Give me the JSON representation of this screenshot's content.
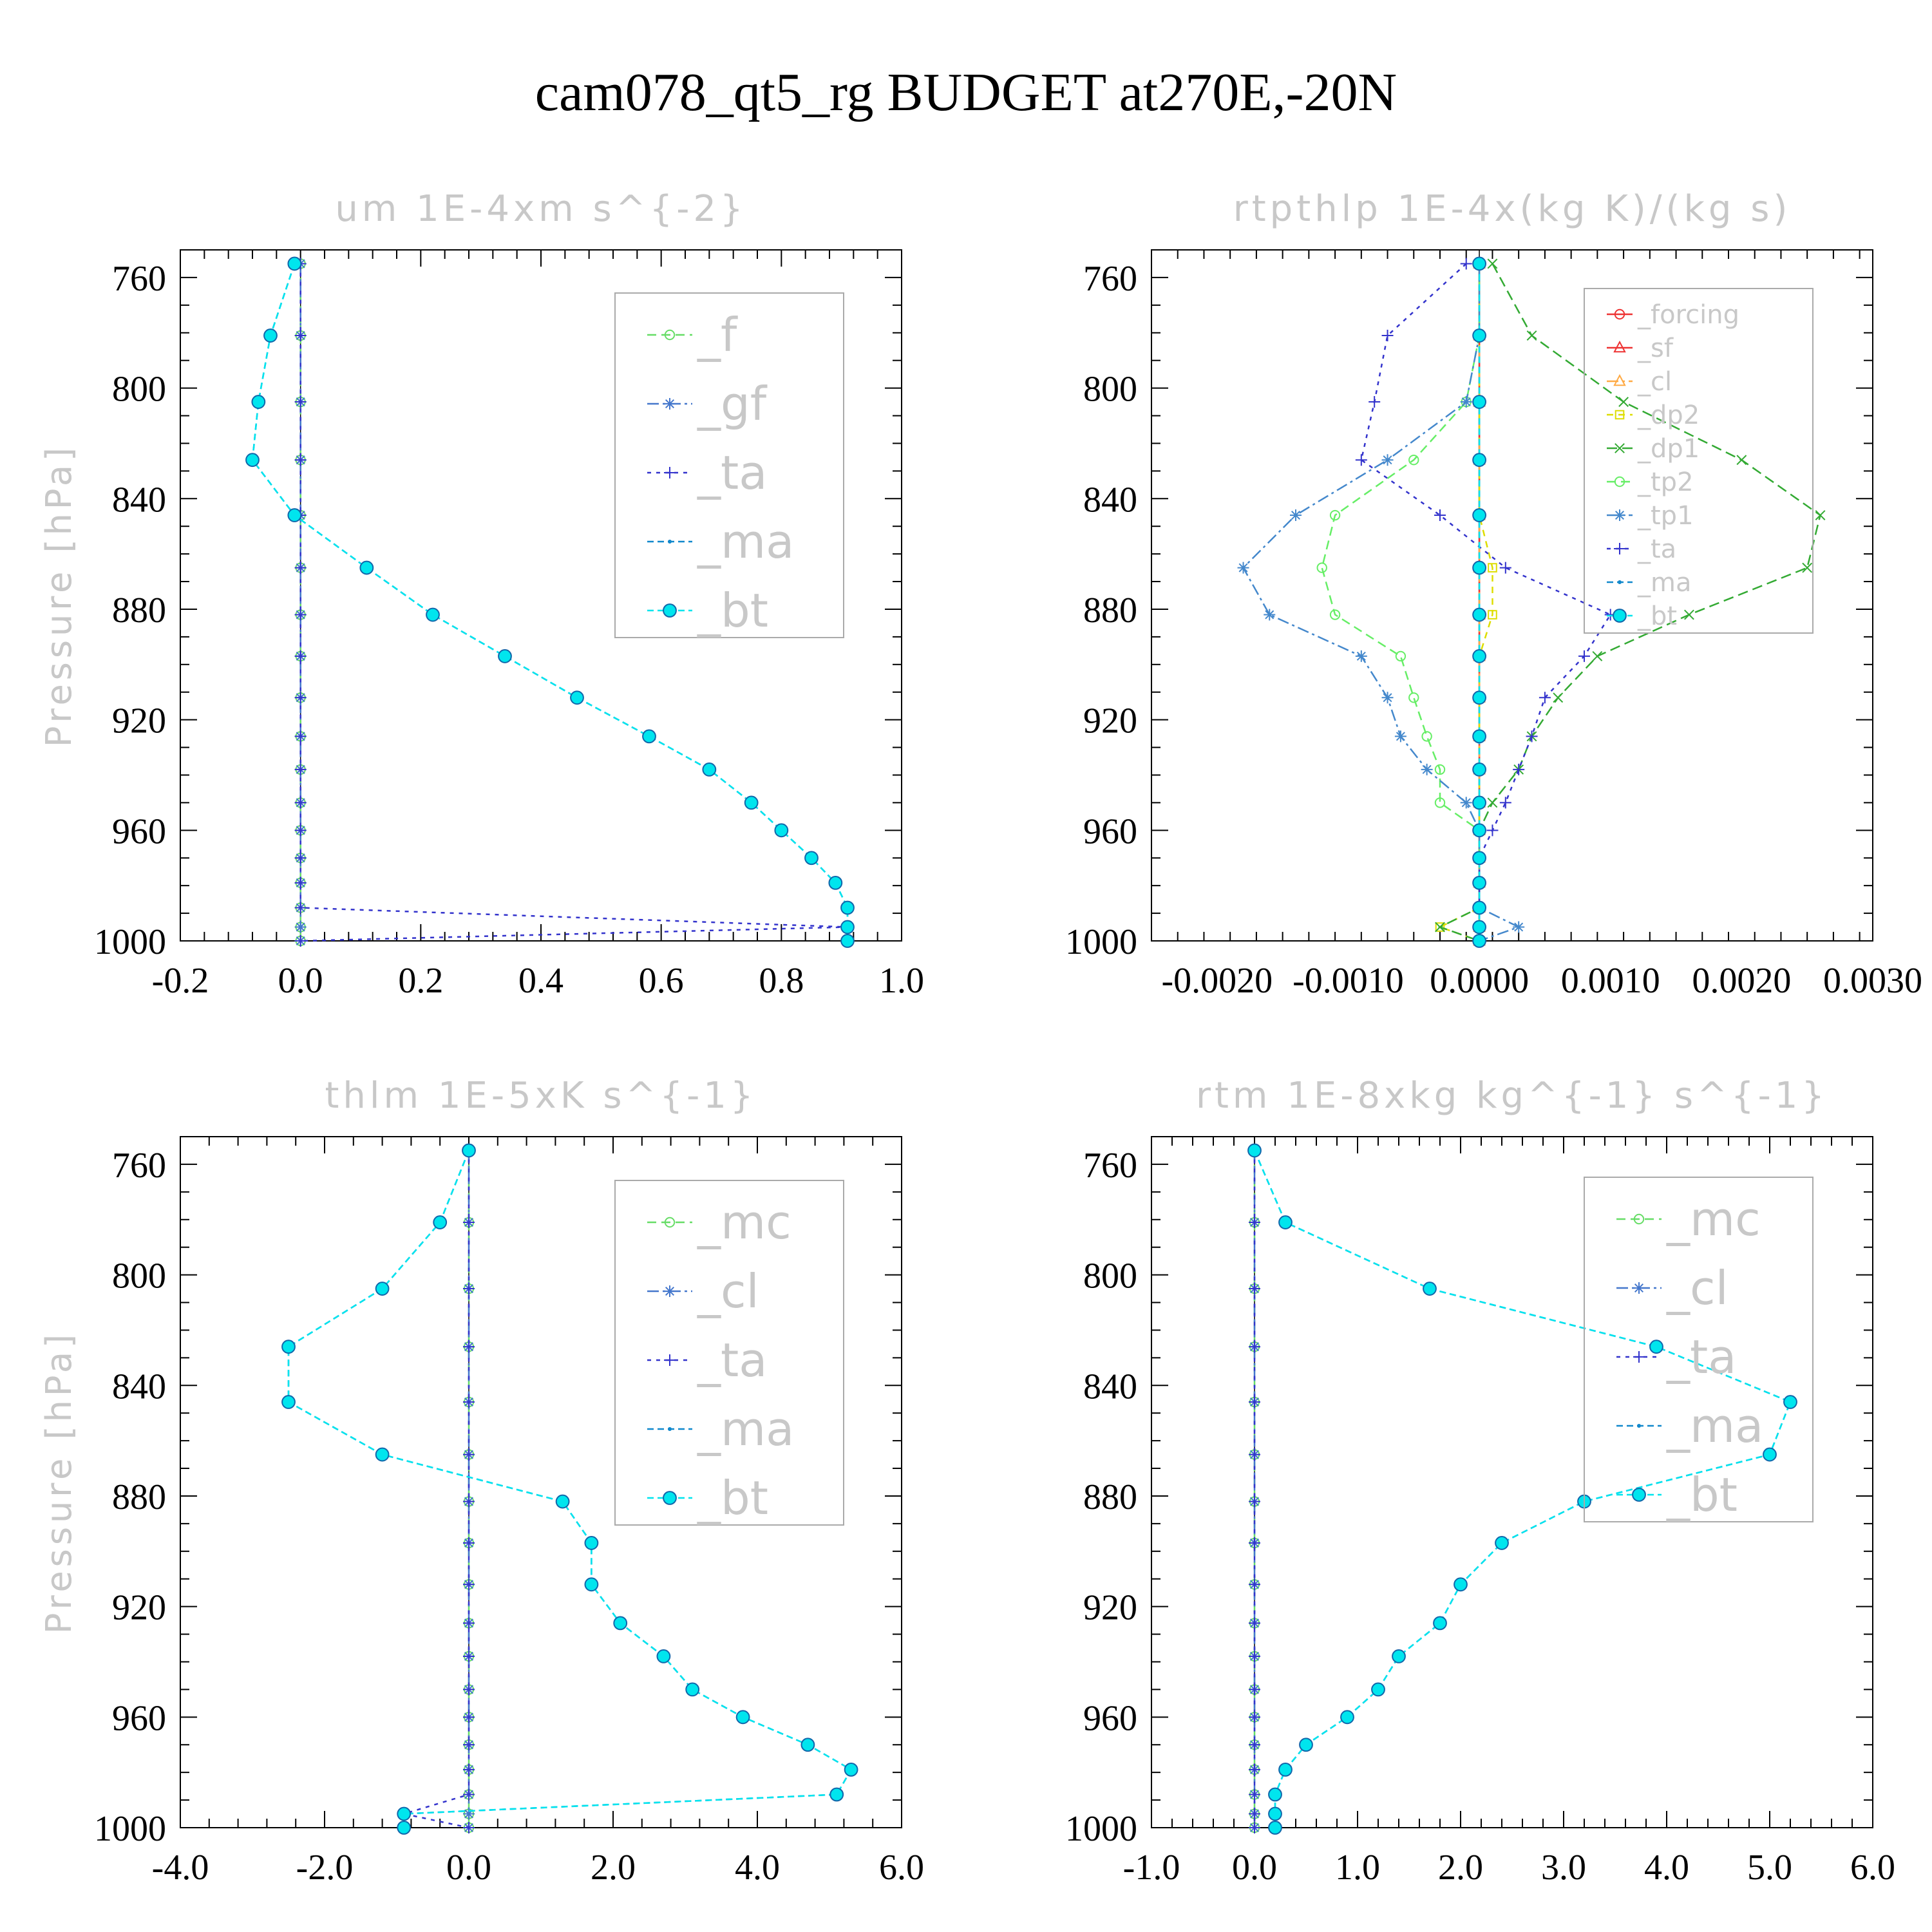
{
  "figure": {
    "title": "cam078_qt5_rg  BUDGET at270E,-20N"
  },
  "chart_data": [
    {
      "type": "line",
      "title": "um  1E-4xm s^{-2}",
      "ylabel": "Pressure [hPa]",
      "xlim": [
        -0.2,
        1.0
      ],
      "ylim": [
        1000,
        750
      ],
      "xticks": [
        -0.2,
        0.0,
        0.2,
        0.4,
        0.6,
        0.8,
        1.0
      ],
      "xtick_labels": [
        "-0.2",
        "0.0",
        "0.2",
        "0.4",
        "0.6",
        "0.8",
        "1.0"
      ],
      "yticks": [
        760,
        800,
        840,
        880,
        920,
        960,
        1000
      ],
      "legend_placement": "top-right",
      "levels": [
        755,
        781,
        805,
        826,
        846,
        865,
        882,
        897,
        912,
        926,
        938,
        950,
        960,
        970,
        979,
        988,
        995,
        1000
      ],
      "series": [
        {
          "name": "_f",
          "color": "#66dd66",
          "marker": "circle",
          "values": [
            0,
            0,
            0,
            0,
            0,
            0,
            0,
            0,
            0,
            0,
            0,
            0,
            0,
            0,
            0,
            0,
            0,
            0
          ]
        },
        {
          "name": "_gf",
          "color": "#4477cc",
          "marker": "star",
          "values": [
            0,
            0,
            0,
            0,
            0,
            0,
            0,
            0,
            0,
            0,
            0,
            0,
            0,
            0,
            0,
            0,
            0,
            0
          ]
        },
        {
          "name": "_ta",
          "color": "#3333cc",
          "marker": "plus",
          "values": [
            0,
            0,
            0,
            0,
            0,
            0,
            0,
            0,
            0,
            0,
            0,
            0,
            0,
            0,
            0,
            0,
            0.91,
            0
          ]
        },
        {
          "name": "_ma",
          "color": "#1188cc",
          "marker": "dot",
          "values": [
            -0.01,
            -0.05,
            -0.07,
            -0.08,
            -0.01,
            0.11,
            0.22,
            0.34,
            0.46,
            0.58,
            0.68,
            0.75,
            0.8,
            0.85,
            0.89,
            0.91,
            0.91,
            0.91
          ]
        },
        {
          "name": "_bt",
          "color": "#00e5ee",
          "marker": "filled",
          "values": [
            -0.01,
            -0.05,
            -0.07,
            -0.08,
            -0.01,
            0.11,
            0.22,
            0.34,
            0.46,
            0.58,
            0.68,
            0.75,
            0.8,
            0.85,
            0.89,
            0.91,
            0.91,
            0.91
          ]
        }
      ]
    },
    {
      "type": "line",
      "title": "rtpthlp  1E-4x(kg K)/(kg s)",
      "ylabel": "Pressure [hPa]",
      "xlim": [
        -0.0025,
        0.003
      ],
      "ylim": [
        1000,
        750
      ],
      "xticks": [
        -0.002,
        -0.001,
        0.0,
        0.001,
        0.002,
        0.003
      ],
      "xtick_labels": [
        "-0.0020",
        "-0.0010",
        "0.0000",
        "0.0010",
        "0.0020",
        "0.0030"
      ],
      "yticks": [
        760,
        800,
        840,
        880,
        920,
        960,
        1000
      ],
      "legend_placement": "top-right",
      "levels": [
        755,
        781,
        805,
        826,
        846,
        865,
        882,
        897,
        912,
        926,
        938,
        950,
        960,
        970,
        979,
        988,
        995,
        1000
      ],
      "series": [
        {
          "name": "_forcing",
          "color": "#ee3333",
          "marker": "circle",
          "values": [
            0,
            0,
            0,
            0,
            0,
            0,
            0,
            0,
            0,
            0,
            0,
            0,
            0,
            0,
            0,
            0,
            0,
            0
          ]
        },
        {
          "name": "_sf",
          "color": "#ee3333",
          "marker": "triangle",
          "values": [
            0,
            0,
            0,
            0,
            0,
            0,
            0,
            0,
            0,
            0,
            0,
            0,
            0,
            0,
            0,
            0,
            0,
            0
          ]
        },
        {
          "name": "_cl",
          "color": "#ffaa44",
          "marker": "triangle",
          "values": [
            0,
            0,
            0,
            0,
            0,
            0,
            0,
            0,
            0,
            0,
            0,
            0,
            0,
            0,
            0,
            0,
            0,
            0
          ]
        },
        {
          "name": "_dp2",
          "color": "#dddd00",
          "marker": "square",
          "values": [
            0,
            0,
            0,
            0,
            0,
            0.0001,
            0.0001,
            0,
            0,
            0,
            0,
            0,
            0,
            0,
            0,
            0,
            -0.0003,
            0
          ]
        },
        {
          "name": "_dp1",
          "color": "#33aa33",
          "marker": "cross",
          "values": [
            0.0001,
            0.0004,
            0.0011,
            0.002,
            0.0026,
            0.0025,
            0.0016,
            0.0009,
            0.0006,
            0.0004,
            0.0003,
            0.0001,
            0,
            0,
            0,
            0,
            -0.0003,
            0
          ]
        },
        {
          "name": "_tp2",
          "color": "#66ee66",
          "marker": "circle",
          "values": [
            0,
            0,
            -0.0001,
            -0.0005,
            -0.0011,
            -0.0012,
            -0.0011,
            -0.0006,
            -0.0005,
            -0.0004,
            -0.0003,
            -0.0003,
            0,
            0,
            0,
            0,
            0,
            0
          ]
        },
        {
          "name": "_tp1",
          "color": "#4488cc",
          "marker": "star",
          "values": [
            0,
            0,
            -0.0001,
            -0.0007,
            -0.0014,
            -0.0018,
            -0.0016,
            -0.0009,
            -0.0007,
            -0.0006,
            -0.0004,
            -0.0001,
            0,
            0,
            0,
            0,
            0.0003,
            0
          ]
        },
        {
          "name": "_ta",
          "color": "#3333cc",
          "marker": "plus",
          "values": [
            -0.0001,
            -0.0007,
            -0.0008,
            -0.0009,
            -0.0003,
            0.0002,
            0.001,
            0.0008,
            0.0005,
            0.0004,
            0.0003,
            0.0002,
            0.0001,
            0,
            0,
            0,
            0,
            0
          ]
        },
        {
          "name": "_ma",
          "color": "#1188cc",
          "marker": "dot",
          "values": [
            0,
            0,
            0,
            0,
            0,
            0,
            0,
            0,
            0,
            0,
            0,
            0,
            0,
            0,
            0,
            0,
            0,
            0
          ]
        },
        {
          "name": "_bt",
          "color": "#00e5ee",
          "marker": "filled",
          "values": [
            0,
            0,
            0,
            0,
            0,
            0,
            0,
            0,
            0,
            0,
            0,
            0,
            0,
            0,
            0,
            0,
            0,
            0
          ]
        }
      ]
    },
    {
      "type": "line",
      "title": "thlm  1E-5xK s^{-1}",
      "ylabel": "Pressure [hPa]",
      "xlim": [
        -4.0,
        6.0
      ],
      "ylim": [
        1000,
        750
      ],
      "xticks": [
        -4.0,
        -2.0,
        0.0,
        2.0,
        4.0,
        6.0
      ],
      "xtick_labels": [
        "-4.0",
        "-2.0",
        "0.0",
        "2.0",
        "4.0",
        "6.0"
      ],
      "yticks": [
        760,
        800,
        840,
        880,
        920,
        960,
        1000
      ],
      "legend_placement": "top-right",
      "levels": [
        755,
        781,
        805,
        826,
        846,
        865,
        882,
        897,
        912,
        926,
        938,
        950,
        960,
        970,
        979,
        988,
        995,
        1000
      ],
      "series": [
        {
          "name": "_mc",
          "color": "#66dd66",
          "marker": "circle",
          "values": [
            0,
            0,
            0,
            0,
            0,
            0,
            0,
            0,
            0,
            0,
            0,
            0,
            0,
            0,
            0,
            0,
            0,
            0
          ]
        },
        {
          "name": "_cl",
          "color": "#4477cc",
          "marker": "star",
          "values": [
            0,
            0,
            0,
            0,
            0,
            0,
            0,
            0,
            0,
            0,
            0,
            0,
            0,
            0,
            0,
            0,
            0,
            0
          ]
        },
        {
          "name": "_ta",
          "color": "#3333cc",
          "marker": "plus",
          "values": [
            0,
            0,
            0,
            0,
            0,
            0,
            0,
            0,
            0,
            0,
            0,
            0,
            0,
            0,
            0,
            0,
            -0.9,
            0
          ]
        },
        {
          "name": "_ma",
          "color": "#1188cc",
          "marker": "dot",
          "values": [
            0,
            -0.4,
            -1.2,
            -2.5,
            -2.5,
            -1.2,
            1.3,
            1.7,
            1.7,
            2.1,
            2.7,
            3.1,
            3.8,
            4.7,
            5.3,
            5.1,
            -0.9,
            -0.9
          ]
        },
        {
          "name": "_bt",
          "color": "#00e5ee",
          "marker": "filled",
          "values": [
            0,
            -0.4,
            -1.2,
            -2.5,
            -2.5,
            -1.2,
            1.3,
            1.7,
            1.7,
            2.1,
            2.7,
            3.1,
            3.8,
            4.7,
            5.3,
            5.1,
            -0.9,
            -0.9
          ]
        }
      ]
    },
    {
      "type": "line",
      "title": "rtm  1E-8xkg kg^{-1} s^{-1}",
      "ylabel": "Pressure [hPa]",
      "xlim": [
        -1.0,
        6.0
      ],
      "ylim": [
        1000,
        750
      ],
      "xticks": [
        -1.0,
        0.0,
        1.0,
        2.0,
        3.0,
        4.0,
        5.0,
        6.0
      ],
      "xtick_labels": [
        "-1.0",
        "0.0",
        "1.0",
        "2.0",
        "3.0",
        "4.0",
        "5.0",
        "6.0"
      ],
      "yticks": [
        760,
        800,
        840,
        880,
        920,
        960,
        1000
      ],
      "legend_placement": "top-right",
      "levels": [
        755,
        781,
        805,
        826,
        846,
        865,
        882,
        897,
        912,
        926,
        938,
        950,
        960,
        970,
        979,
        988,
        995,
        1000
      ],
      "series": [
        {
          "name": "_mc",
          "color": "#66dd66",
          "marker": "circle",
          "values": [
            0,
            0,
            0,
            0,
            0,
            0,
            0,
            0,
            0,
            0,
            0,
            0,
            0,
            0,
            0,
            0,
            0,
            0
          ]
        },
        {
          "name": "_cl",
          "color": "#4477cc",
          "marker": "star",
          "values": [
            0,
            0,
            0,
            0,
            0,
            0,
            0,
            0,
            0,
            0,
            0,
            0,
            0,
            0,
            0,
            0,
            0,
            0
          ]
        },
        {
          "name": "_ta",
          "color": "#3333cc",
          "marker": "plus",
          "values": [
            0,
            0,
            0,
            0,
            0,
            0,
            0,
            0,
            0,
            0,
            0,
            0,
            0,
            0,
            0,
            0,
            0,
            0
          ]
        },
        {
          "name": "_ma",
          "color": "#1188cc",
          "marker": "dot",
          "values": [
            0,
            0.3,
            1.7,
            3.9,
            5.2,
            5.0,
            3.2,
            2.4,
            2.0,
            1.8,
            1.4,
            1.2,
            0.9,
            0.5,
            0.3,
            0.2,
            0.2,
            0.2
          ]
        },
        {
          "name": "_bt",
          "color": "#00e5ee",
          "marker": "filled",
          "values": [
            0,
            0.3,
            1.7,
            3.9,
            5.2,
            5.0,
            3.2,
            2.4,
            2.0,
            1.8,
            1.4,
            1.2,
            0.9,
            0.5,
            0.3,
            0.2,
            0.2,
            0.2
          ]
        }
      ]
    }
  ]
}
